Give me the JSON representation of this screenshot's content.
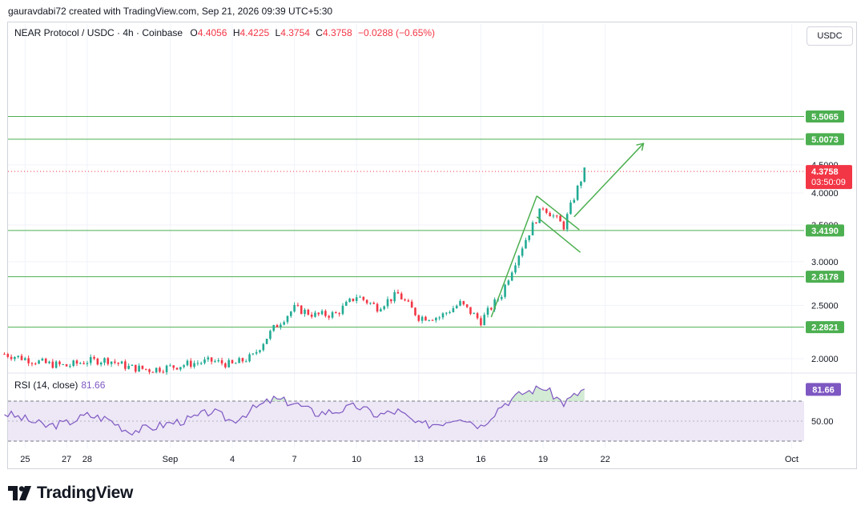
{
  "header": {
    "text": "gauravdabi72 created with TradingView.com, Sep 21, 2026 09:39 UTC+5:30"
  },
  "legend": {
    "symbol": "NEAR Protocol / USDC · 4h · Coinbase",
    "o_label": "O",
    "o_value": "4.4056",
    "h_label": "H",
    "h_value": "4.4225",
    "l_label": "L",
    "l_value": "4.3754",
    "c_label": "C",
    "c_value": "4.3758",
    "change": "−0.0288 (−0.65%)"
  },
  "currency_button": "USDC",
  "rsi": {
    "label": "RSI (14, close)",
    "value": "81.66"
  },
  "footer": {
    "brand": "TradingView"
  },
  "colors": {
    "up": "#22ab94",
    "down": "#f23645",
    "level": "#4caf50",
    "rsi_line": "#7e57c2",
    "rsi_band": "#ede7f6",
    "grid": "#f0f3fa"
  },
  "chart_data": {
    "type": "candlestick",
    "title": "NEAR Protocol / USDC · 4h · Coinbase",
    "x_ticks": [
      "27",
      "Sep",
      "4",
      "7",
      "10",
      "13",
      "16",
      "19",
      "22",
      "25",
      "28",
      "Oct"
    ],
    "y_ticks": [
      "4.5000",
      "4.0000",
      "3.5000",
      "3.0000",
      "2.5000",
      "2.0000"
    ],
    "ylim": [
      1.85,
      6.0
    ],
    "log_scale": true,
    "grid": true,
    "last_price": {
      "value": "4.3758",
      "countdown": "03:50:09"
    },
    "levels": [
      {
        "label": "5.5065",
        "value": 5.5065
      },
      {
        "label": "5.0073",
        "value": 5.0073
      },
      {
        "label": "3.4190",
        "value": 3.419
      },
      {
        "label": "2.8178",
        "value": 2.8178
      },
      {
        "label": "2.2821",
        "value": 2.2821
      }
    ],
    "rsi_ticks": [
      "50.00"
    ],
    "rsi_levels": [
      70,
      50,
      30
    ],
    "rsi_current": "81.66",
    "price_anchors": [
      [
        "Aug 24",
        2.04
      ],
      [
        "Aug 25",
        2.0
      ],
      [
        "Aug 26",
        1.96
      ],
      [
        "Aug 27",
        1.94
      ],
      [
        "Aug 28",
        1.98
      ],
      [
        "Aug 29",
        1.99
      ],
      [
        "Aug 30",
        1.93
      ],
      [
        "Aug 31",
        1.91
      ],
      [
        "Sep 1",
        1.93
      ],
      [
        "Sep 2",
        1.96
      ],
      [
        "Sep 3",
        1.98
      ],
      [
        "Sep 4",
        1.95
      ],
      [
        "Sep 5",
        2.02
      ],
      [
        "Sep 6",
        2.27
      ],
      [
        "Sep 7",
        2.47
      ],
      [
        "Sep 8",
        2.4
      ],
      [
        "Sep 9",
        2.41
      ],
      [
        "Sep 10",
        2.6
      ],
      [
        "Sep 11",
        2.48
      ],
      [
        "Sep 12",
        2.62
      ],
      [
        "Sep 13",
        2.38
      ],
      [
        "Sep 14",
        2.38
      ],
      [
        "Sep 15",
        2.52
      ],
      [
        "Sep 16",
        2.34
      ],
      [
        "Sep 17",
        2.62
      ],
      [
        "Sep 18",
        3.2
      ],
      [
        "Sep 19",
        3.78
      ],
      [
        "Sep 20",
        3.48
      ],
      [
        "Sep 21",
        4.38
      ]
    ],
    "rsi_anchors": [
      [
        "Aug 24",
        58
      ],
      [
        "Aug 25",
        52
      ],
      [
        "Aug 26",
        45
      ],
      [
        "Aug 27",
        48
      ],
      [
        "Aug 28",
        56
      ],
      [
        "Aug 29",
        52
      ],
      [
        "Aug 30",
        40
      ],
      [
        "Aug 31",
        43
      ],
      [
        "Sep 1",
        48
      ],
      [
        "Sep 2",
        52
      ],
      [
        "Sep 3",
        60
      ],
      [
        "Sep 4",
        50
      ],
      [
        "Sep 5",
        62
      ],
      [
        "Sep 6",
        72
      ],
      [
        "Sep 7",
        68
      ],
      [
        "Sep 8",
        58
      ],
      [
        "Sep 9",
        60
      ],
      [
        "Sep 10",
        65
      ],
      [
        "Sep 11",
        56
      ],
      [
        "Sep 12",
        60
      ],
      [
        "Sep 13",
        46
      ],
      [
        "Sep 14",
        48
      ],
      [
        "Sep 15",
        55
      ],
      [
        "Sep 16",
        45
      ],
      [
        "Sep 17",
        66
      ],
      [
        "Sep 18",
        78
      ],
      [
        "Sep 19",
        84
      ],
      [
        "Sep 20",
        68
      ],
      [
        "Sep 21",
        82
      ]
    ]
  }
}
